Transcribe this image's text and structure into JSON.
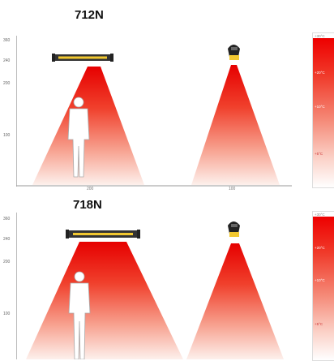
{
  "models": [
    {
      "title": "712N",
      "y_ticks": [
        "360",
        "240",
        "200",
        "100"
      ],
      "bottom_ticks": [
        "200",
        "",
        "",
        "100",
        ""
      ],
      "legend": {
        "head": "+30°C",
        "labels": [
          "+20°C",
          "+10°C",
          "+5°C"
        ]
      }
    },
    {
      "title": "718N",
      "y_ticks": [
        "360",
        "240",
        "200",
        "100"
      ],
      "bottom_ticks": [],
      "legend": {
        "head": "+30°C",
        "labels": [
          "+20°C",
          "+10°C",
          "+5°C"
        ]
      }
    }
  ],
  "colors": {
    "hot": "#e60000",
    "warm": "#f26a55",
    "cool": "#fde6e0",
    "heater_body": "#333333",
    "heater_element": "#f2c830"
  }
}
